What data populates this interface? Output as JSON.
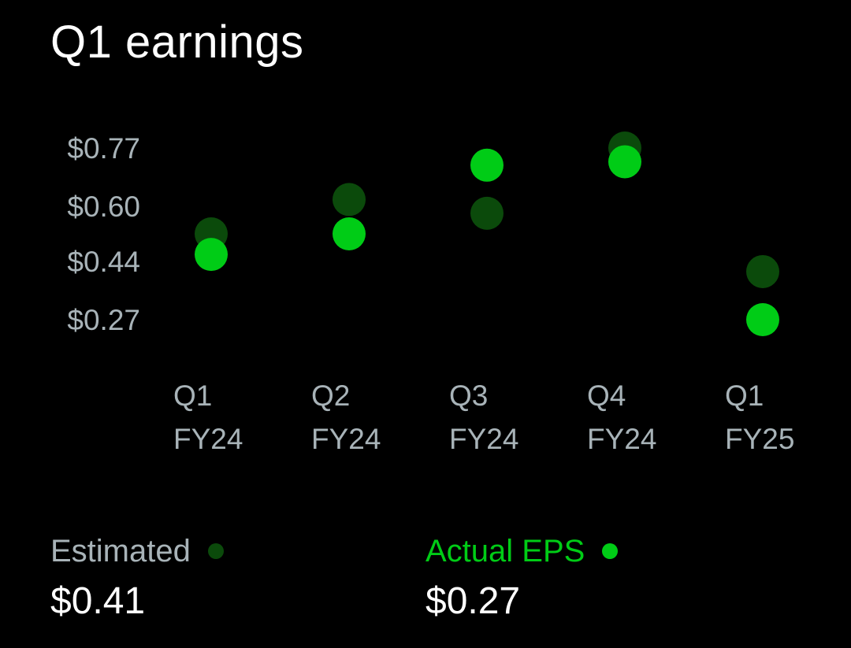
{
  "title": "Q1 earnings",
  "colors": {
    "background": "#000000",
    "estimated": "#0b4a0b",
    "actual": "#00cc16",
    "axis_text": "#a8b3b8",
    "estimated_label": "#a8b3b8",
    "actual_label": "#00cc16"
  },
  "legend": {
    "estimated": {
      "label": "Estimated",
      "value": "$0.41"
    },
    "actual": {
      "label": "Actual EPS",
      "value": "$0.27"
    }
  },
  "chart_data": {
    "type": "scatter",
    "title": "Q1 earnings",
    "categories": [
      "Q1 FY24",
      "Q2 FY24",
      "Q3 FY24",
      "Q4 FY24",
      "Q1 FY25"
    ],
    "category_lines": [
      [
        "Q1",
        "FY24"
      ],
      [
        "Q2",
        "FY24"
      ],
      [
        "Q3",
        "FY24"
      ],
      [
        "Q4",
        "FY24"
      ],
      [
        "Q1",
        "FY25"
      ]
    ],
    "y_ticks": [
      0.77,
      0.6,
      0.44,
      0.27
    ],
    "y_tick_labels": [
      "$0.77",
      "$0.60",
      "$0.44",
      "$0.27"
    ],
    "ylim": [
      0.27,
      0.77
    ],
    "grid": false,
    "legend_placement": "bottom",
    "series": [
      {
        "name": "Estimated",
        "color": "#0b4a0b",
        "values": [
          0.52,
          0.62,
          0.58,
          0.77,
          0.41
        ]
      },
      {
        "name": "Actual EPS",
        "color": "#00cc16",
        "values": [
          0.46,
          0.52,
          0.72,
          0.73,
          0.27
        ]
      }
    ]
  }
}
